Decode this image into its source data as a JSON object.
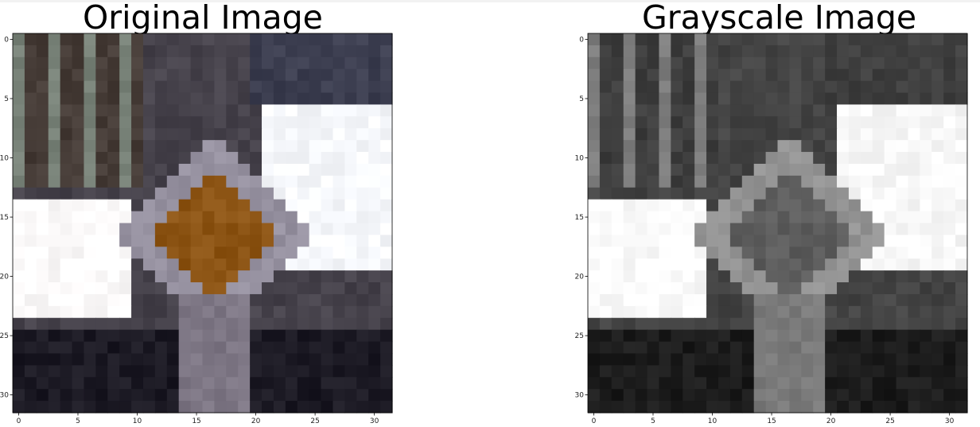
{
  "chart_data": [
    {
      "type": "heatmap",
      "title": "Original Image",
      "xlim": [
        -0.5,
        31.5
      ],
      "ylim": [
        31.5,
        -0.5
      ],
      "xticks": [
        0,
        5,
        10,
        15,
        20,
        25,
        30
      ],
      "yticks": [
        0,
        5,
        10,
        15,
        20,
        25,
        30
      ],
      "colormap": "rgb",
      "grid": false
    },
    {
      "type": "heatmap",
      "title": "Grayscale Image",
      "xlim": [
        -0.5,
        31.5
      ],
      "ylim": [
        31.5,
        -0.5
      ],
      "xticks": [
        0,
        5,
        10,
        15,
        20,
        25,
        30
      ],
      "yticks": [
        0,
        5,
        10,
        15,
        20,
        25,
        30
      ],
      "colormap": "gray",
      "grid": false
    }
  ]
}
